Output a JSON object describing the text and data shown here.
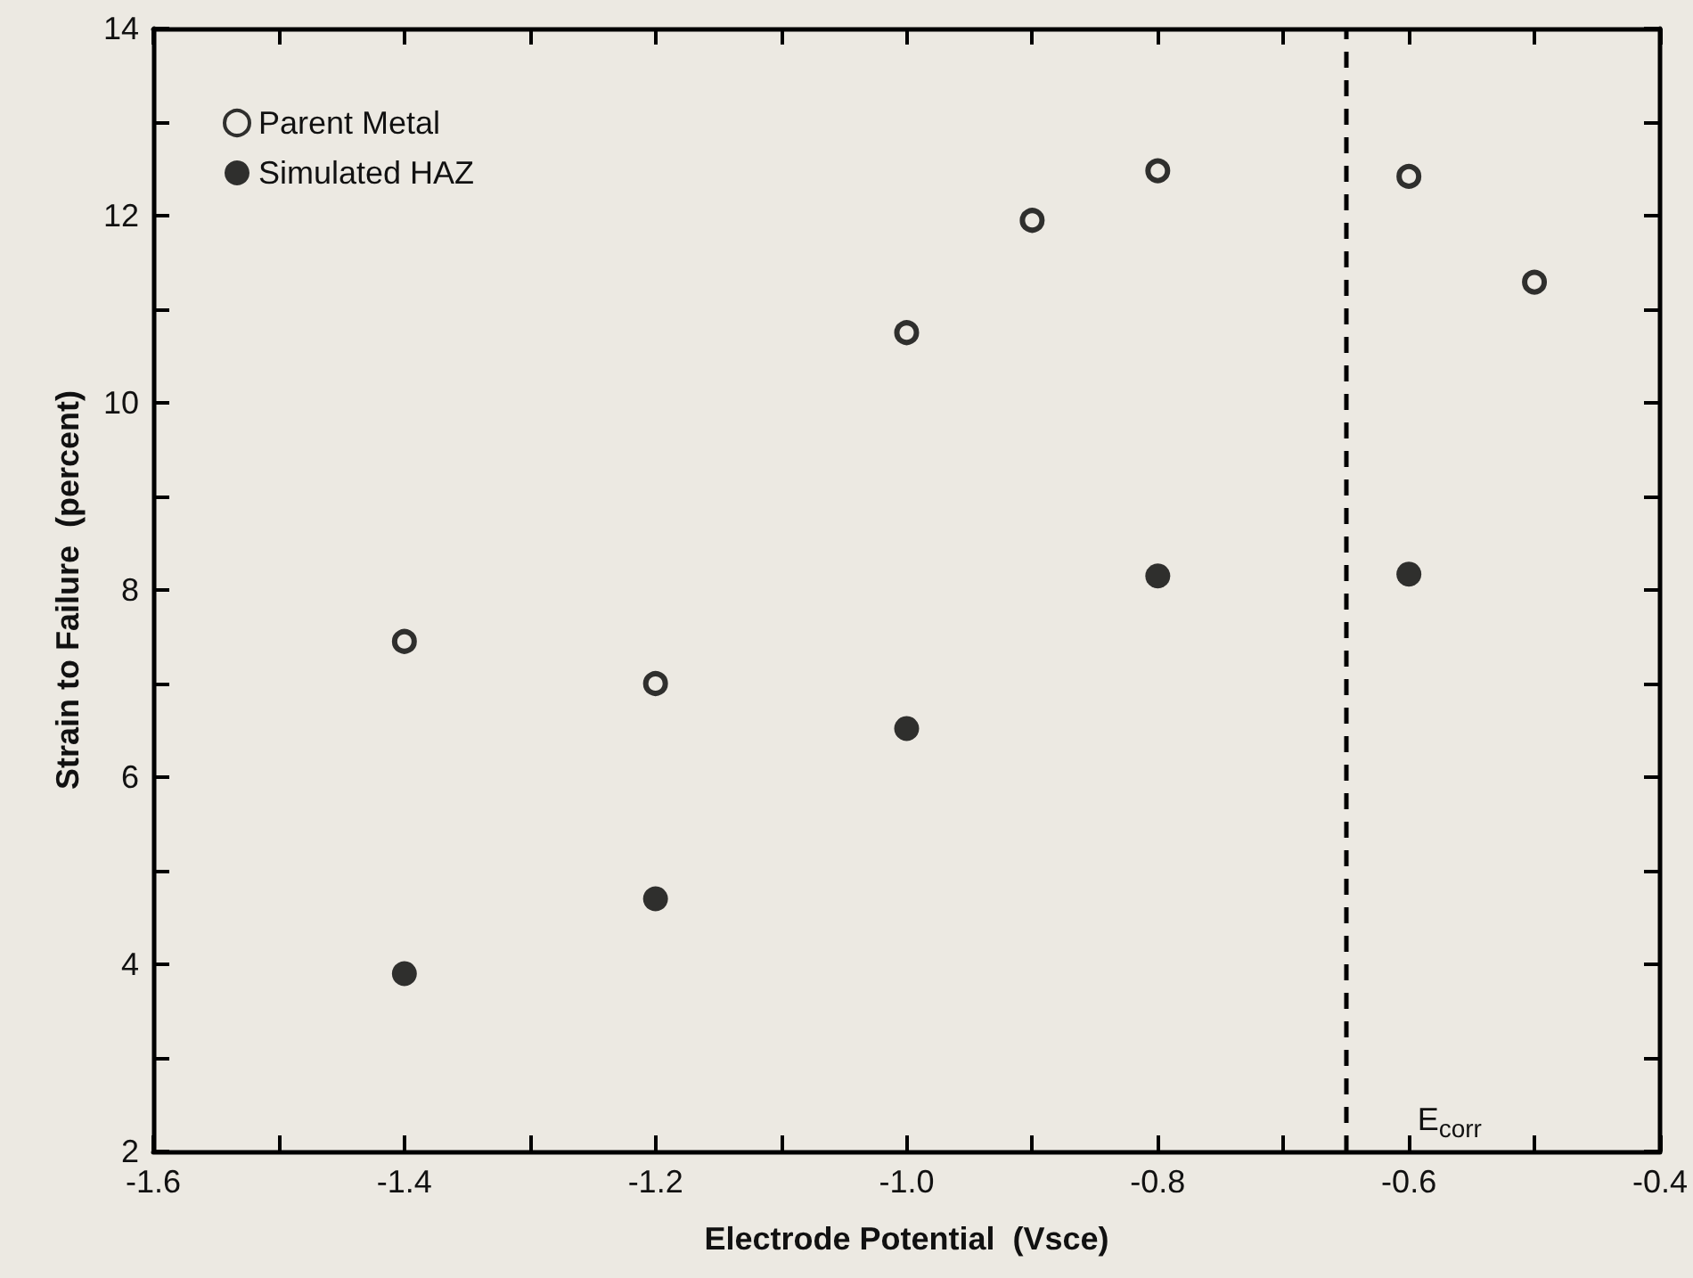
{
  "chart_data": {
    "type": "scatter",
    "xlabel": "Electrode Potential  (Vsce)",
    "ylabel": "Strain to Failure  (percent)",
    "series": [
      {
        "name": "Parent Metal",
        "color": "#000000",
        "x": [
          -1.4,
          -1.2,
          -1.0,
          -0.9,
          -0.8,
          -0.6,
          -0.5
        ],
        "values": [
          7.45,
          7.0,
          10.75,
          11.95,
          12.48,
          12.42,
          11.29
        ]
      },
      {
        "name": "Simulated HAZ",
        "color": "#000000",
        "x": [
          -1.4,
          -1.2,
          -1.0,
          -0.8,
          -0.6
        ],
        "values": [
          3.9,
          4.7,
          6.52,
          8.15,
          8.17
        ]
      }
    ],
    "xlim": [
      -1.6,
      -0.4
    ],
    "xticks": [
      -1.6,
      -1.4,
      -1.2,
      {
        "value": -1.0,
        "label": "-1.0"
      },
      -0.8,
      -0.6,
      -0.4
    ],
    "ylim": [
      2,
      14
    ],
    "yticks": [
      2,
      4,
      6,
      8,
      10,
      12,
      14
    ],
    "ref_lines": [
      {
        "axis": "x",
        "value": -0.65,
        "label": "E$_{corr}$",
        "line_style": "dashed"
      }
    ],
    "marker": "circle",
    "legend": "top left",
    "grid": false
  }
}
